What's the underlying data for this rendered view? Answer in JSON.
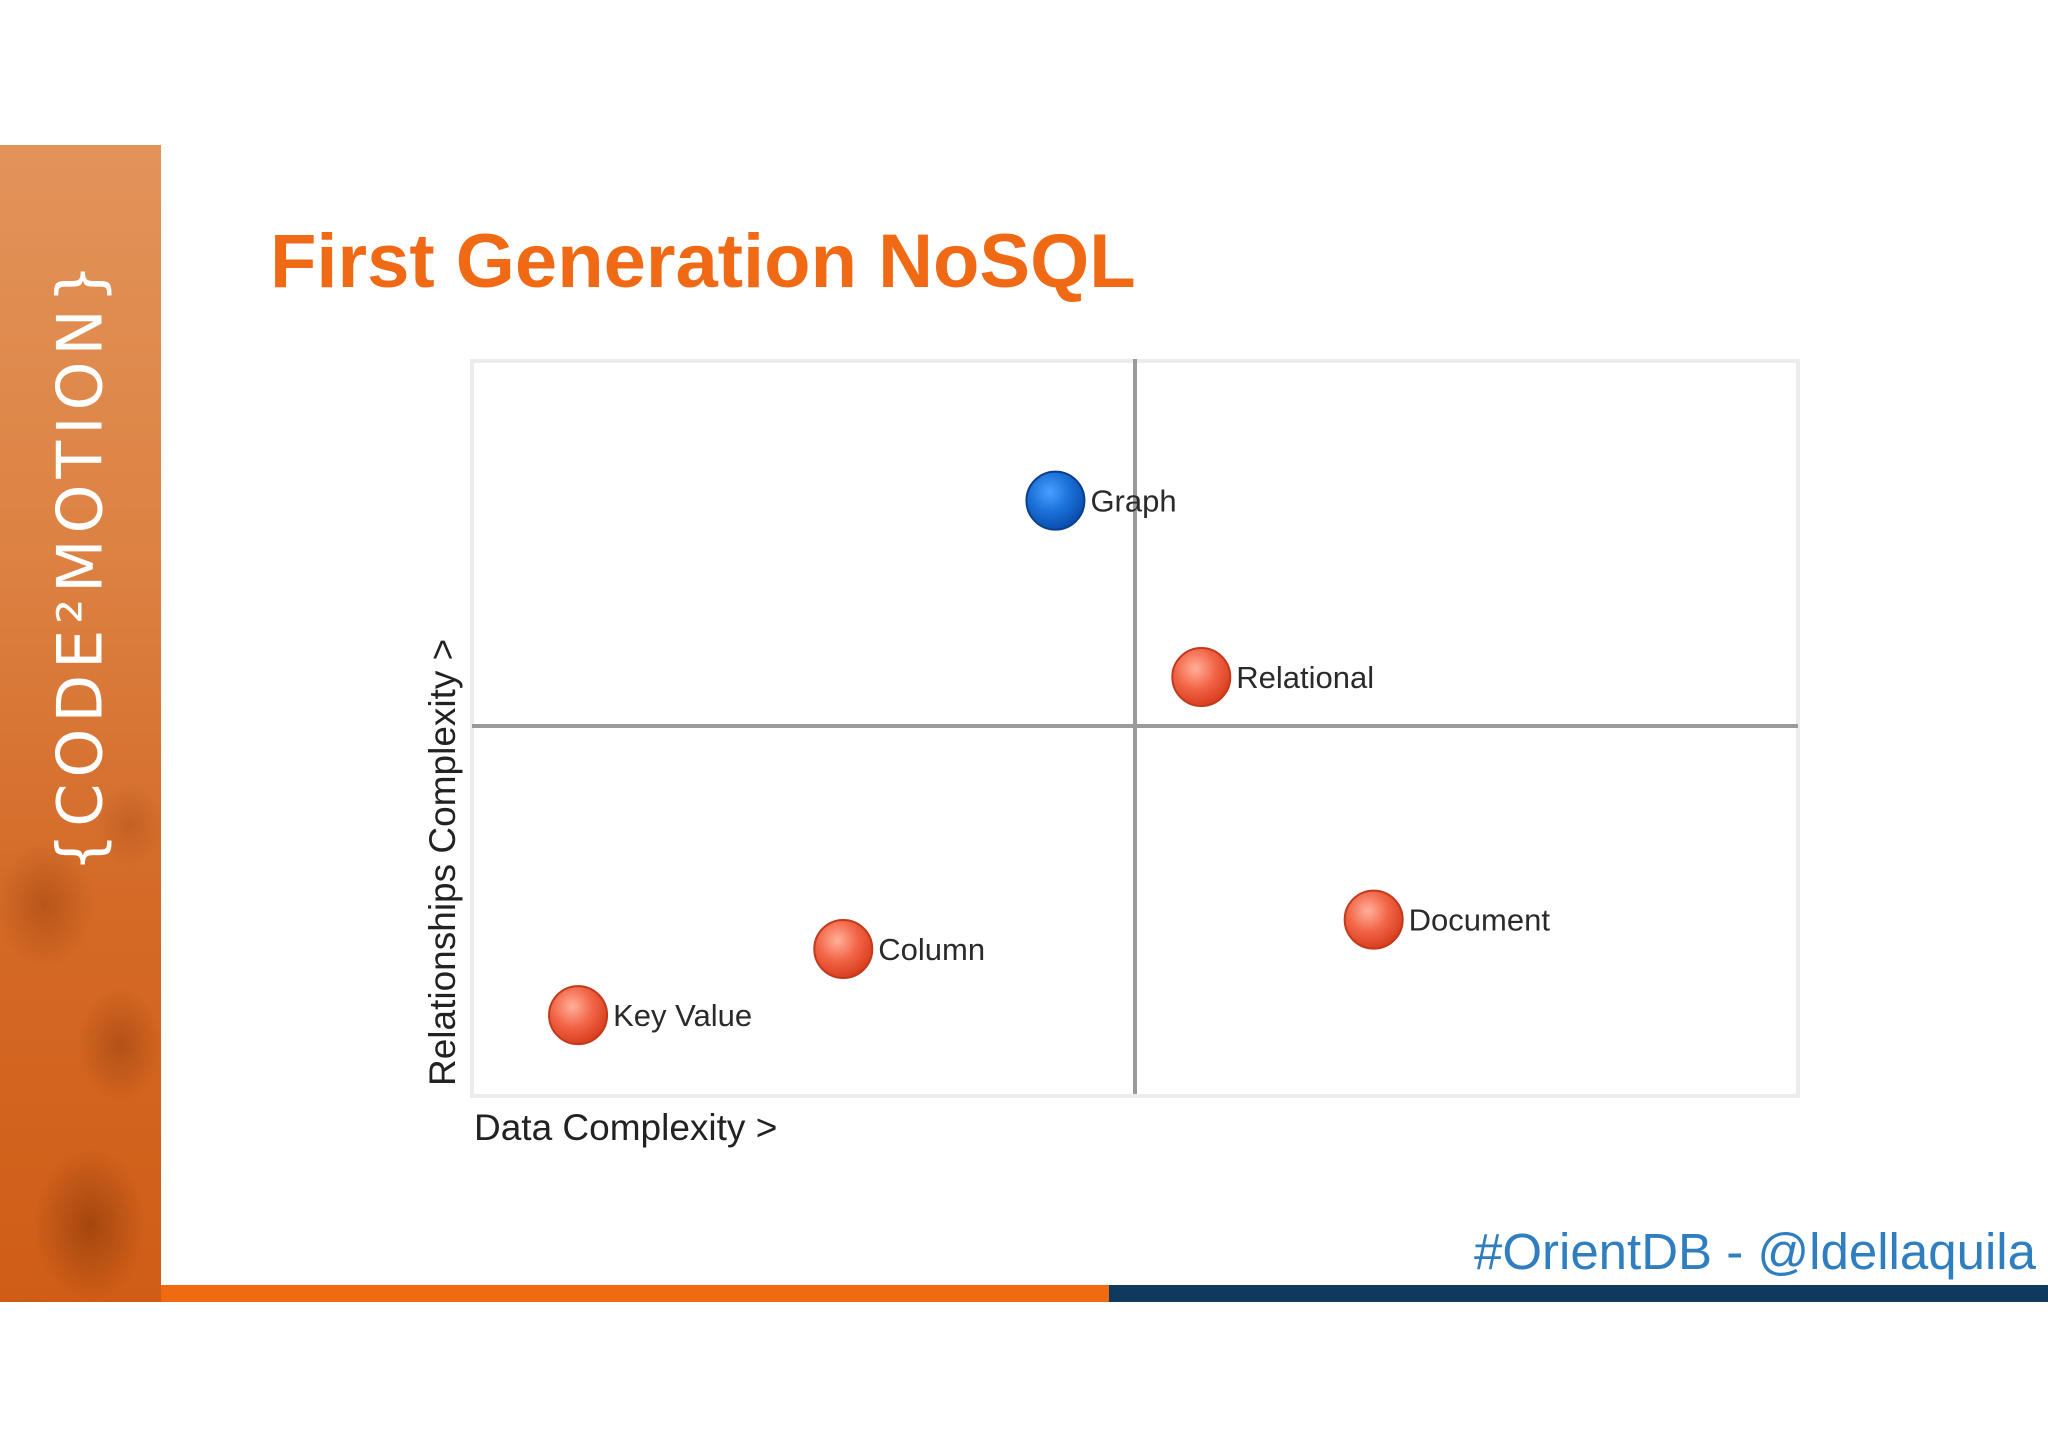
{
  "slide": {
    "brand_text": "{CODE²MOTION}",
    "title": "First Generation NoSQL",
    "handle": "#OrientDB - @ldellaquila"
  },
  "diagram": {
    "x_axis_label": "Data Complexity >",
    "y_axis_label": "Relationships Complexity >",
    "points": [
      {
        "label": "Graph",
        "color": "#1a6fd8",
        "x": 0.44,
        "y": 0.81
      },
      {
        "label": "Relational",
        "color": "#f0603e",
        "x": 0.55,
        "y": 0.57
      },
      {
        "label": "Document",
        "color": "#f0603e",
        "x": 0.68,
        "y": 0.24
      },
      {
        "label": "Column",
        "color": "#f0603e",
        "x": 0.28,
        "y": 0.2
      },
      {
        "label": "Key Value",
        "color": "#f0603e",
        "x": 0.08,
        "y": 0.11
      }
    ]
  },
  "colors": {
    "accent_orange": "#f06a16",
    "navy": "#0f3a5e",
    "handle_blue": "#2f7fc0"
  }
}
